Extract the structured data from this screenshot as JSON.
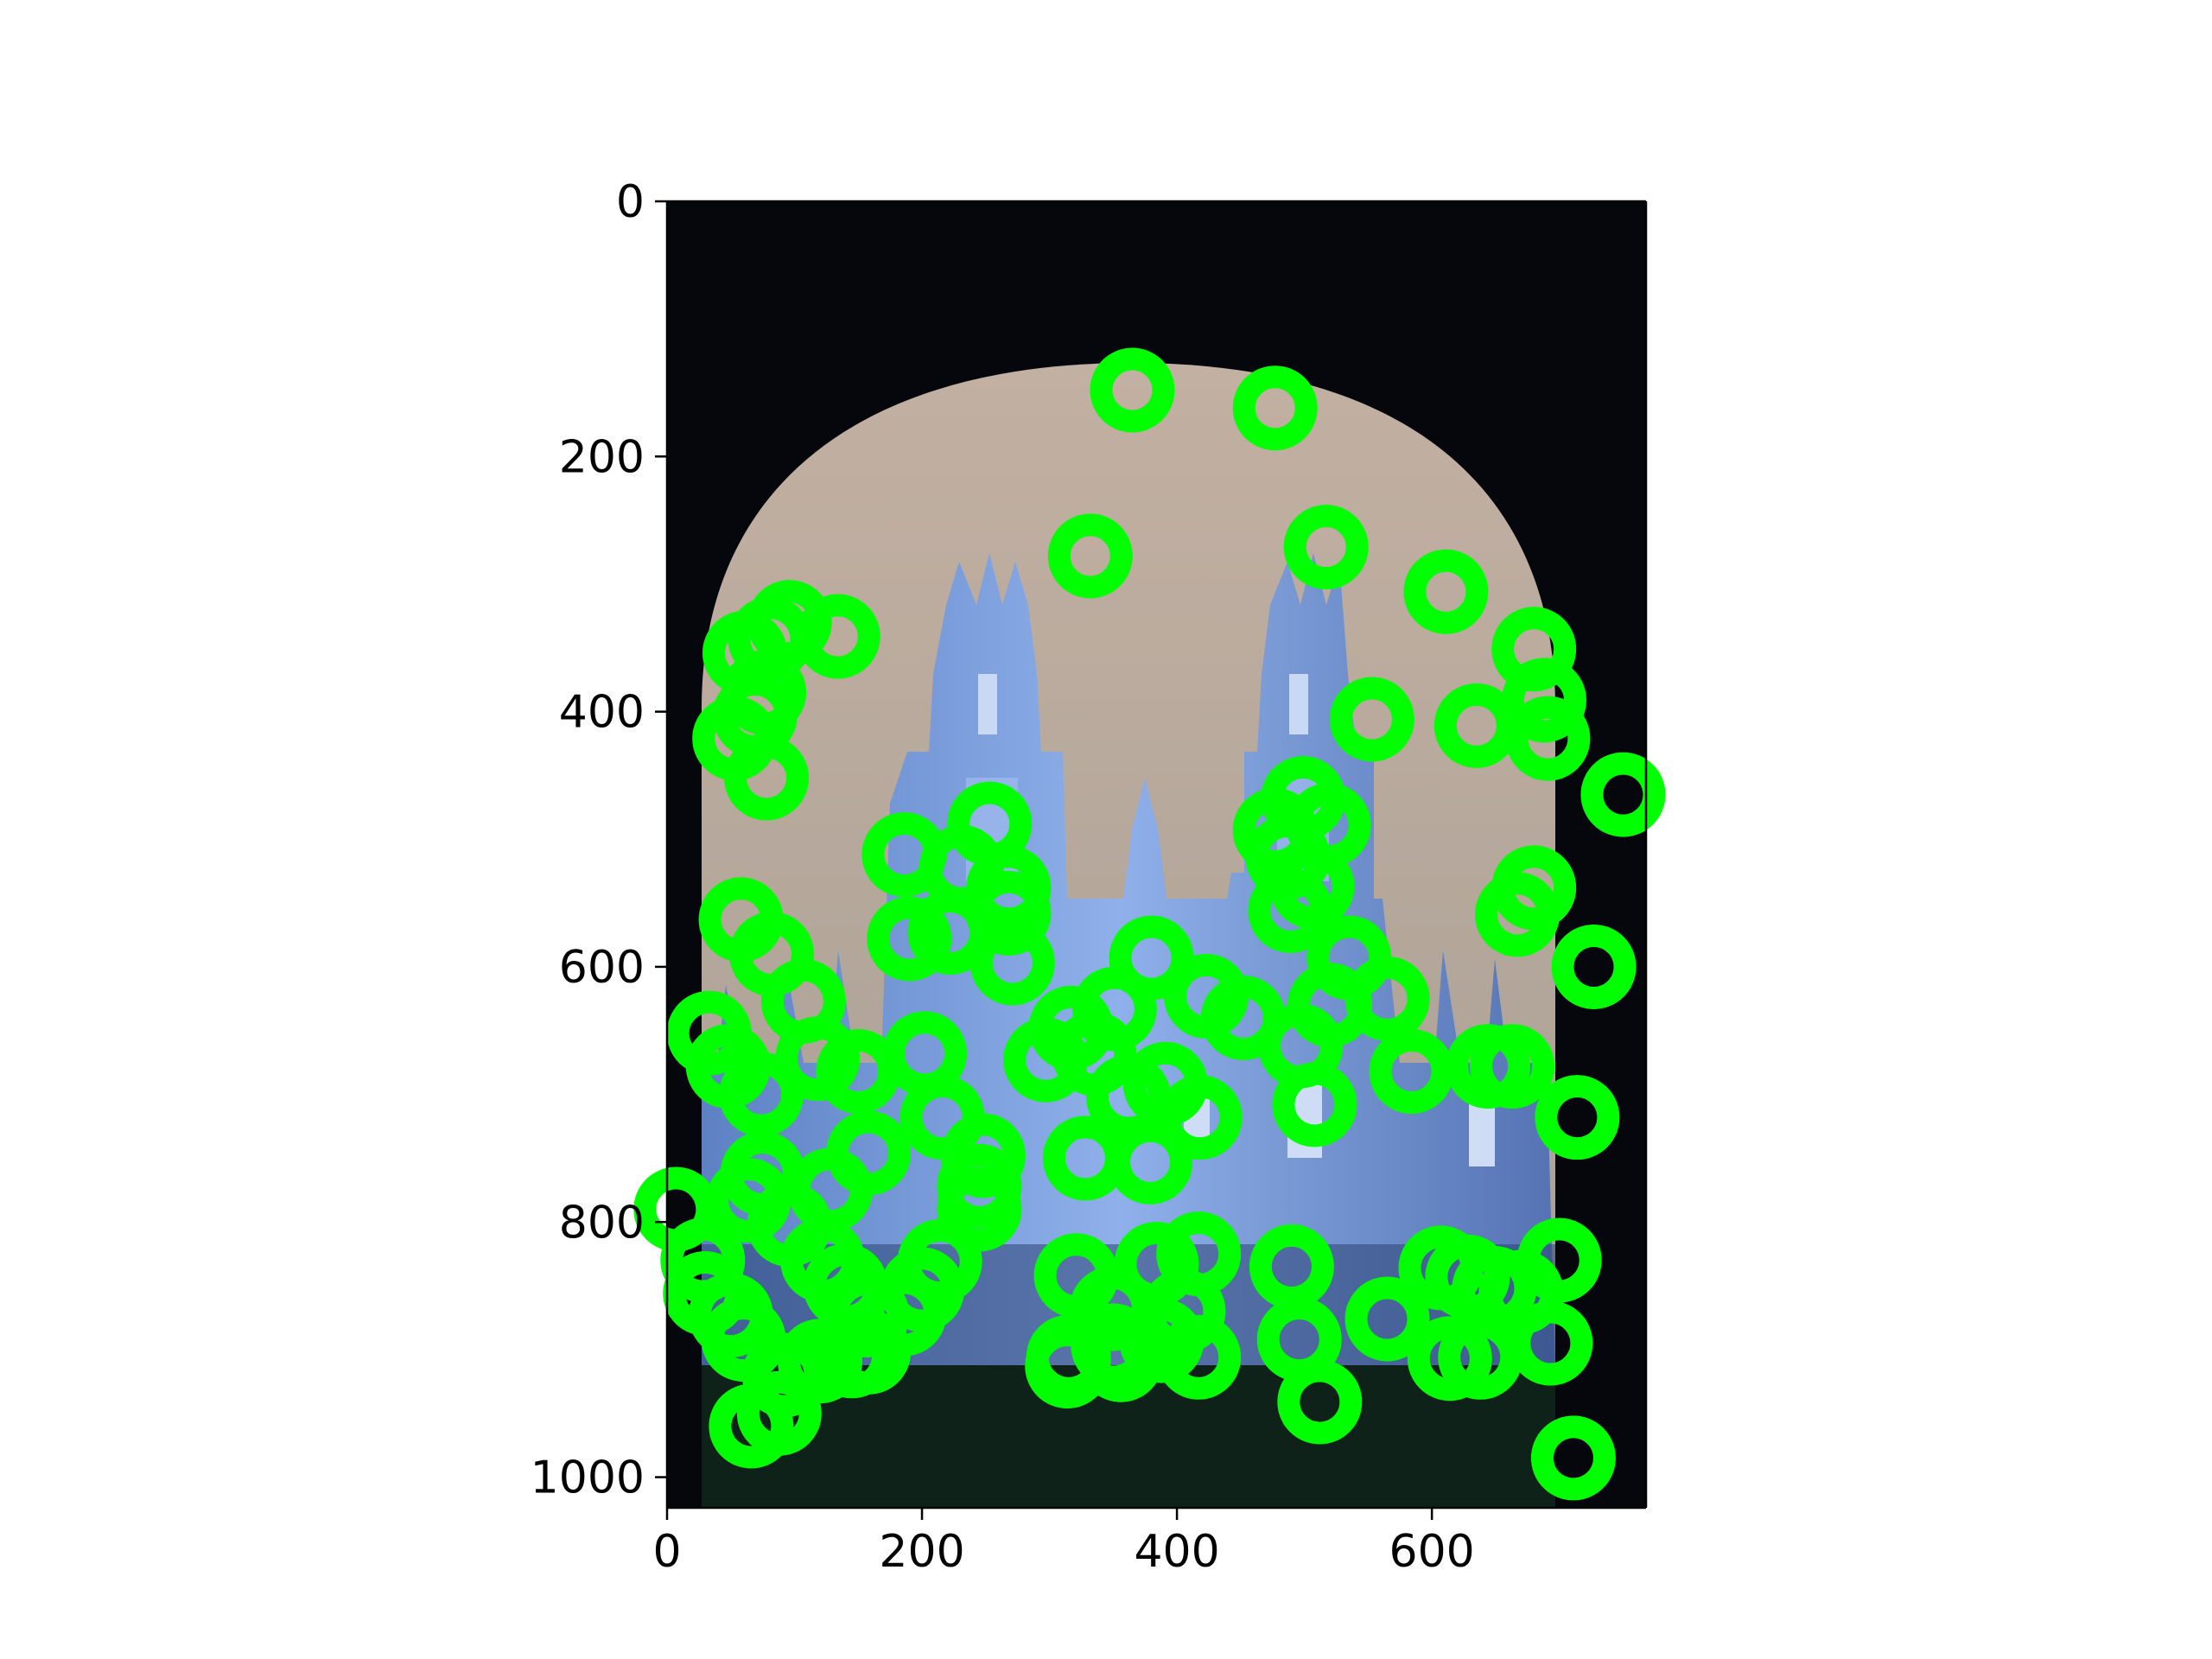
{
  "colors": {
    "background": "#ffffff",
    "axes": "#000000",
    "marker": "#00ff00",
    "sky": "#b5a698",
    "building": "#6f97dd",
    "building_light": "#a8c4f2",
    "building_dark": "#2a3f6e",
    "ground": "#10231a"
  },
  "icon_names": {
    "marker": "keypoint-ring-marker"
  },
  "chart_data": {
    "type": "scatter",
    "title": "",
    "xlabel": "",
    "ylabel": "",
    "xlim": [
      0,
      768
    ],
    "ylim": [
      1024,
      0
    ],
    "y_inverted": true,
    "grid": false,
    "legend": "none",
    "background_image": "blue-tinted photo of a gothic college building seen through a dark archway",
    "x_ticks": [
      0,
      200,
      400,
      600
    ],
    "x_tick_labels": [
      "0",
      "200",
      "400",
      "600"
    ],
    "y_ticks": [
      0,
      200,
      400,
      600,
      800,
      1000
    ],
    "y_tick_labels": [
      "0",
      "200",
      "400",
      "600",
      "800",
      "1000"
    ],
    "series": [
      {
        "marker": "ring",
        "color": "#00ff00",
        "points": [
          [
            365,
            148
          ],
          [
            477,
            162
          ],
          [
            332,
            278
          ],
          [
            517,
            271
          ],
          [
            611,
            306
          ],
          [
            553,
            406
          ],
          [
            96,
            330
          ],
          [
            134,
            341
          ],
          [
            81,
            343
          ],
          [
            61,
            354
          ],
          [
            76,
            385
          ],
          [
            69,
            403
          ],
          [
            53,
            421
          ],
          [
            78,
            452
          ],
          [
            680,
            351
          ],
          [
            635,
            411
          ],
          [
            688,
            391
          ],
          [
            691,
            421
          ],
          [
            750,
            465
          ],
          [
            253,
            488
          ],
          [
            186,
            512
          ],
          [
            231,
            522
          ],
          [
            268,
            538
          ],
          [
            499,
            468
          ],
          [
            477,
            493
          ],
          [
            519,
            489
          ],
          [
            487,
            514
          ],
          [
            506,
            537
          ],
          [
            489,
            556
          ],
          [
            680,
            538
          ],
          [
            667,
            559
          ],
          [
            58,
            563
          ],
          [
            82,
            590
          ],
          [
            190,
            578
          ],
          [
            222,
            573
          ],
          [
            268,
            558
          ],
          [
            271,
            597
          ],
          [
            727,
            600
          ],
          [
            535,
            593
          ],
          [
            520,
            630
          ],
          [
            565,
            625
          ],
          [
            380,
            593
          ],
          [
            423,
            623
          ],
          [
            351,
            633
          ],
          [
            317,
            648
          ],
          [
            297,
            673
          ],
          [
            107,
            627
          ],
          [
            118,
            672
          ],
          [
            33,
            652
          ],
          [
            48,
            678
          ],
          [
            74,
            700
          ],
          [
            150,
            682
          ],
          [
            202,
            668
          ],
          [
            216,
            718
          ],
          [
            452,
            640
          ],
          [
            497,
            662
          ],
          [
            508,
            708
          ],
          [
            584,
            682
          ],
          [
            644,
            678
          ],
          [
            663,
            678
          ],
          [
            714,
            718
          ],
          [
            335,
            668
          ],
          [
            362,
            702
          ],
          [
            391,
            692
          ],
          [
            418,
            718
          ],
          [
            379,
            753
          ],
          [
            328,
            750
          ],
          [
            248,
            748
          ],
          [
            245,
            772
          ],
          [
            245,
            790
          ],
          [
            158,
            746
          ],
          [
            128,
            775
          ],
          [
            75,
            762
          ],
          [
            64,
            783
          ],
          [
            96,
            802
          ],
          [
            7,
            790
          ],
          [
            28,
            830
          ],
          [
            30,
            856
          ],
          [
            50,
            873
          ],
          [
            60,
            892
          ],
          [
            92,
            920
          ],
          [
            88,
            950
          ],
          [
            66,
            960
          ],
          [
            122,
            830
          ],
          [
            140,
            850
          ],
          [
            157,
            873
          ],
          [
            158,
            902
          ],
          [
            120,
            909
          ],
          [
            145,
            905
          ],
          [
            214,
            831
          ],
          [
            200,
            853
          ],
          [
            186,
            872
          ],
          [
            321,
            842
          ],
          [
            349,
            868
          ],
          [
            384,
            833
          ],
          [
            417,
            825
          ],
          [
            405,
            870
          ],
          [
            315,
            906
          ],
          [
            350,
            897
          ],
          [
            388,
            893
          ],
          [
            417,
            906
          ],
          [
            314,
            913
          ],
          [
            356,
            908
          ],
          [
            490,
            835
          ],
          [
            496,
            892
          ],
          [
            512,
            941
          ],
          [
            565,
            876
          ],
          [
            607,
            836
          ],
          [
            628,
            843
          ],
          [
            649,
            852
          ],
          [
            670,
            855
          ],
          [
            700,
            830
          ],
          [
            693,
            895
          ],
          [
            614,
            907
          ],
          [
            638,
            906
          ],
          [
            711,
            985
          ]
        ]
      }
    ]
  }
}
